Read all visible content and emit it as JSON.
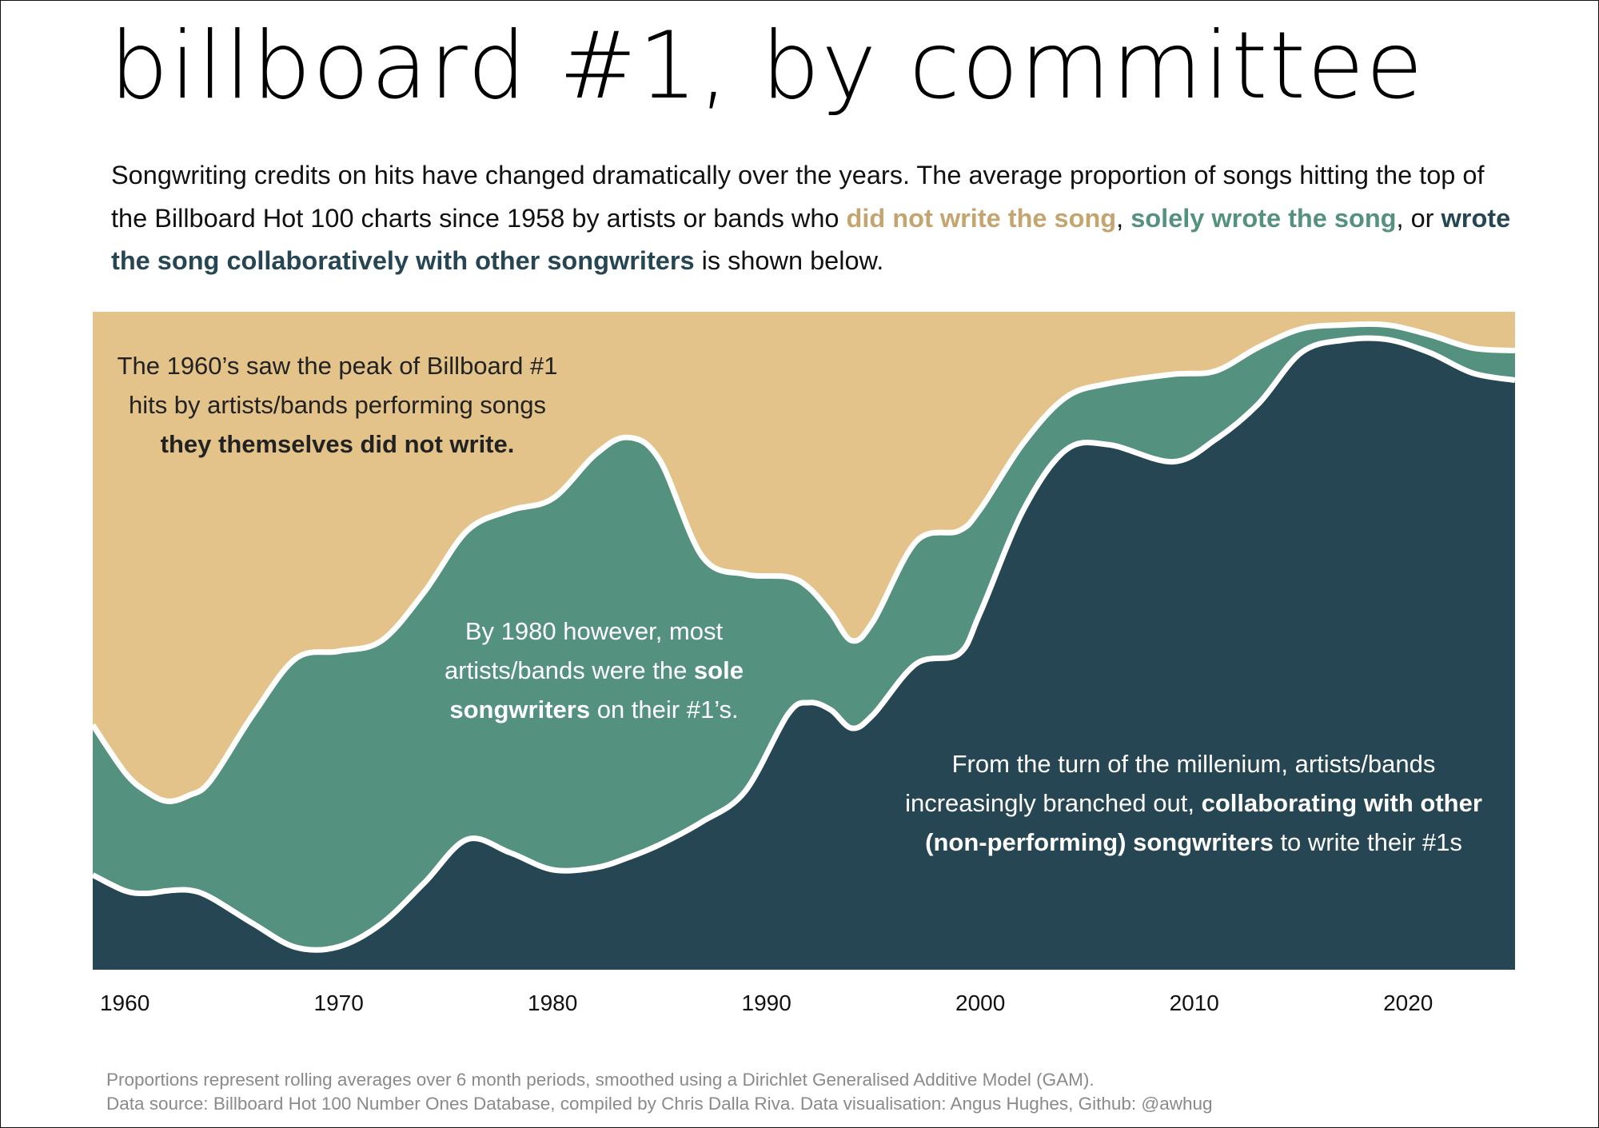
{
  "title": "billboard #1, by committee",
  "subtitle": {
    "part1": "Songwriting credits on hits have changed dramatically over the years. The average proportion of songs hitting the top of the Billboard Hot 100 charts since 1958 by artists or bands who ",
    "not_written": "did not write the song",
    "part2": ",  ",
    "sole": "solely wrote the song",
    "part3": ", or ",
    "collab": "wrote the song collaboratively with other songwriters",
    "part4": " is shown below."
  },
  "annotations": {
    "a1": {
      "l1": "The 1960’s saw the peak of Billboard #1",
      "l2": "hits by artists/bands performing songs",
      "l3_bold": "they themselves did not write."
    },
    "a2": {
      "l1": "By 1980 however, most",
      "l2a": "artists/bands were the ",
      "l2_bold": "sole",
      "l3_bold": "songwriters",
      "l3b": " on their #1’s."
    },
    "a3": {
      "l1": "From the turn of the millenium, artists/bands",
      "l2a": "increasingly branched out, ",
      "l2_bold": "collaborating with other",
      "l3_bold": "(non-performing) songwriters",
      "l3b": " to write their #1s"
    }
  },
  "footer": {
    "l1": "Proportions represent rolling averages over 6 month periods, smoothed using a Dirichlet Generalised Additive Model (GAM).",
    "l2": "Data source: Billboard Hot 100 Number Ones Database, compiled by Chris Dalla Riva. Data visualisation: Angus Hughes, Github: @awhug"
  },
  "chart_data": {
    "type": "area",
    "stacked": true,
    "xlim": [
      1958.5,
      2025
    ],
    "ylim": [
      0,
      1
    ],
    "x_ticks": [
      "1960",
      "1970",
      "1980",
      "1990",
      "2000",
      "2010",
      "2020"
    ],
    "grid": false,
    "colors": {
      "did_not_write": "#e3c389",
      "sole": "#55917f",
      "collaborative": "#264653",
      "separator": "#ffffff"
    },
    "x": [
      1958.5,
      1960,
      1961,
      1962,
      1963,
      1964,
      1966,
      1968,
      1970,
      1972,
      1974,
      1976,
      1978,
      1980,
      1982,
      1983.5,
      1985,
      1987,
      1989,
      1991,
      1992,
      1993,
      1994,
      1995,
      1997,
      1999,
      2000,
      2002,
      2004,
      2006,
      2009,
      2011,
      2013,
      2015,
      2017,
      2019,
      2021,
      2023,
      2025
    ],
    "series": [
      {
        "key": "collaborative",
        "values": [
          0.144,
          0.12,
          0.116,
          0.12,
          0.121,
          0.11,
          0.07,
          0.034,
          0.035,
          0.07,
          0.132,
          0.198,
          0.178,
          0.152,
          0.155,
          0.17,
          0.19,
          0.225,
          0.271,
          0.388,
          0.406,
          0.395,
          0.367,
          0.388,
          0.465,
          0.48,
          0.543,
          0.698,
          0.79,
          0.798,
          0.772,
          0.806,
          0.86,
          0.938,
          0.957,
          0.958,
          0.938,
          0.907,
          0.896
        ]
      },
      {
        "key": "sole",
        "values": [
          0.228,
          0.18,
          0.155,
          0.136,
          0.144,
          0.177,
          0.318,
          0.439,
          0.449,
          0.43,
          0.442,
          0.469,
          0.52,
          0.564,
          0.628,
          0.639,
          0.585,
          0.403,
          0.33,
          0.209,
          0.174,
          0.148,
          0.133,
          0.142,
          0.186,
          0.187,
          0.157,
          0.102,
          0.08,
          0.093,
          0.133,
          0.104,
          0.086,
          0.036,
          0.023,
          0.022,
          0.027,
          0.038,
          0.045
        ]
      },
      {
        "key": "did_not_write",
        "values": "remainder"
      }
    ]
  }
}
